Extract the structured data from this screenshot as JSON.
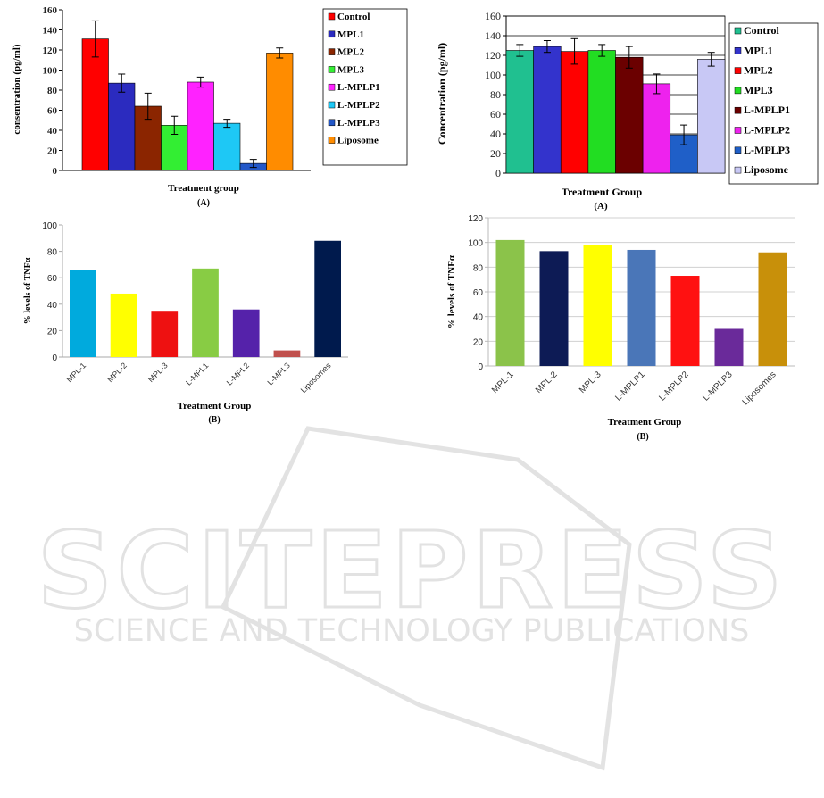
{
  "watermark": {
    "title": "SCITEPRESS",
    "subtitle": "SCIENCE AND TECHNOLOGY PUBLICATIONS"
  },
  "chart_data": [
    {
      "id": "top-left",
      "type": "bar",
      "categories": [
        "Control",
        "MPL1",
        "MPL2",
        "MPL3",
        "L-MPLP1",
        "L-MPLP2",
        "L-MPLP3",
        "Liposome"
      ],
      "values": [
        131,
        87,
        64,
        45,
        88,
        47,
        7,
        117
      ],
      "errors": [
        18,
        9,
        13,
        9,
        5,
        4,
        4,
        5
      ],
      "colors": [
        "#ff0000",
        "#2b2bbf",
        "#8b2500",
        "#33ee33",
        "#ff22ff",
        "#1ec8f5",
        "#2257c8",
        "#ff8c00"
      ],
      "title": "",
      "xlabel": "Treatment group",
      "ylabel": "consentration (pg/ml)",
      "caption": "(A)",
      "ylim": [
        0,
        160
      ],
      "yticks": [
        0,
        20,
        40,
        60,
        80,
        100,
        120,
        140,
        160
      ],
      "grid": false,
      "legend": "right"
    },
    {
      "id": "top-right",
      "type": "bar",
      "categories": [
        "Control",
        "MPL1",
        "MPL2",
        "MPL3",
        "L-MPLP1",
        "L-MPLP2",
        "L-MPLP3",
        "Liposome"
      ],
      "values": [
        125,
        129,
        124,
        125,
        118,
        91,
        39,
        116
      ],
      "errors": [
        6,
        6,
        13,
        6,
        11,
        10,
        10,
        7
      ],
      "colors": [
        "#20c090",
        "#3333cc",
        "#ff0000",
        "#22dd22",
        "#6b0000",
        "#ee22ee",
        "#1f5fc8",
        "#c8c8f5"
      ],
      "title": "",
      "xlabel": "Treatment Group",
      "ylabel": "Concentration (pg/ml)",
      "caption": "(A)",
      "ylim": [
        0,
        160
      ],
      "yticks": [
        0,
        20,
        40,
        60,
        80,
        100,
        120,
        140,
        160
      ],
      "grid": true,
      "legend": "right"
    },
    {
      "id": "bottom-left",
      "type": "bar",
      "categories": [
        "MPL-1",
        "MPL-2",
        "MPL-3",
        "L-MPL1",
        "L-MPL2",
        "L-MPL3",
        "Liposomes"
      ],
      "values": [
        66,
        48,
        35,
        67,
        36,
        5,
        88
      ],
      "colors": [
        "#00aadd",
        "#ffff00",
        "#ee1111",
        "#88cc44",
        "#5522aa",
        "#c0504d",
        "#001a4d"
      ],
      "title": "",
      "xlabel": "Treatment  Group",
      "ylabel": "% levels of TNFα",
      "caption": "(B)",
      "ylim": [
        0,
        100
      ],
      "yticks": [
        0,
        20,
        40,
        60,
        80,
        100
      ],
      "grid": false,
      "legend": "none"
    },
    {
      "id": "bottom-right",
      "type": "bar",
      "categories": [
        "MPL-1",
        "MPL-2",
        "MPL-3",
        "L-MPLP1",
        "L-MPLP2",
        "L-MPLP3",
        "Liposomes"
      ],
      "values": [
        102,
        93,
        98,
        94,
        73,
        30,
        92
      ],
      "colors": [
        "#8bc34a",
        "#0d1b55",
        "#ffff00",
        "#4a76b8",
        "#ff1111",
        "#6a2a9a",
        "#c8900a"
      ],
      "title": "",
      "xlabel": "Treatment  Group",
      "ylabel": "% levels of TNFα",
      "caption": "(B)",
      "ylim": [
        0,
        120
      ],
      "yticks": [
        0,
        20,
        40,
        60,
        80,
        100,
        120
      ],
      "grid": true,
      "legend": "none"
    }
  ]
}
